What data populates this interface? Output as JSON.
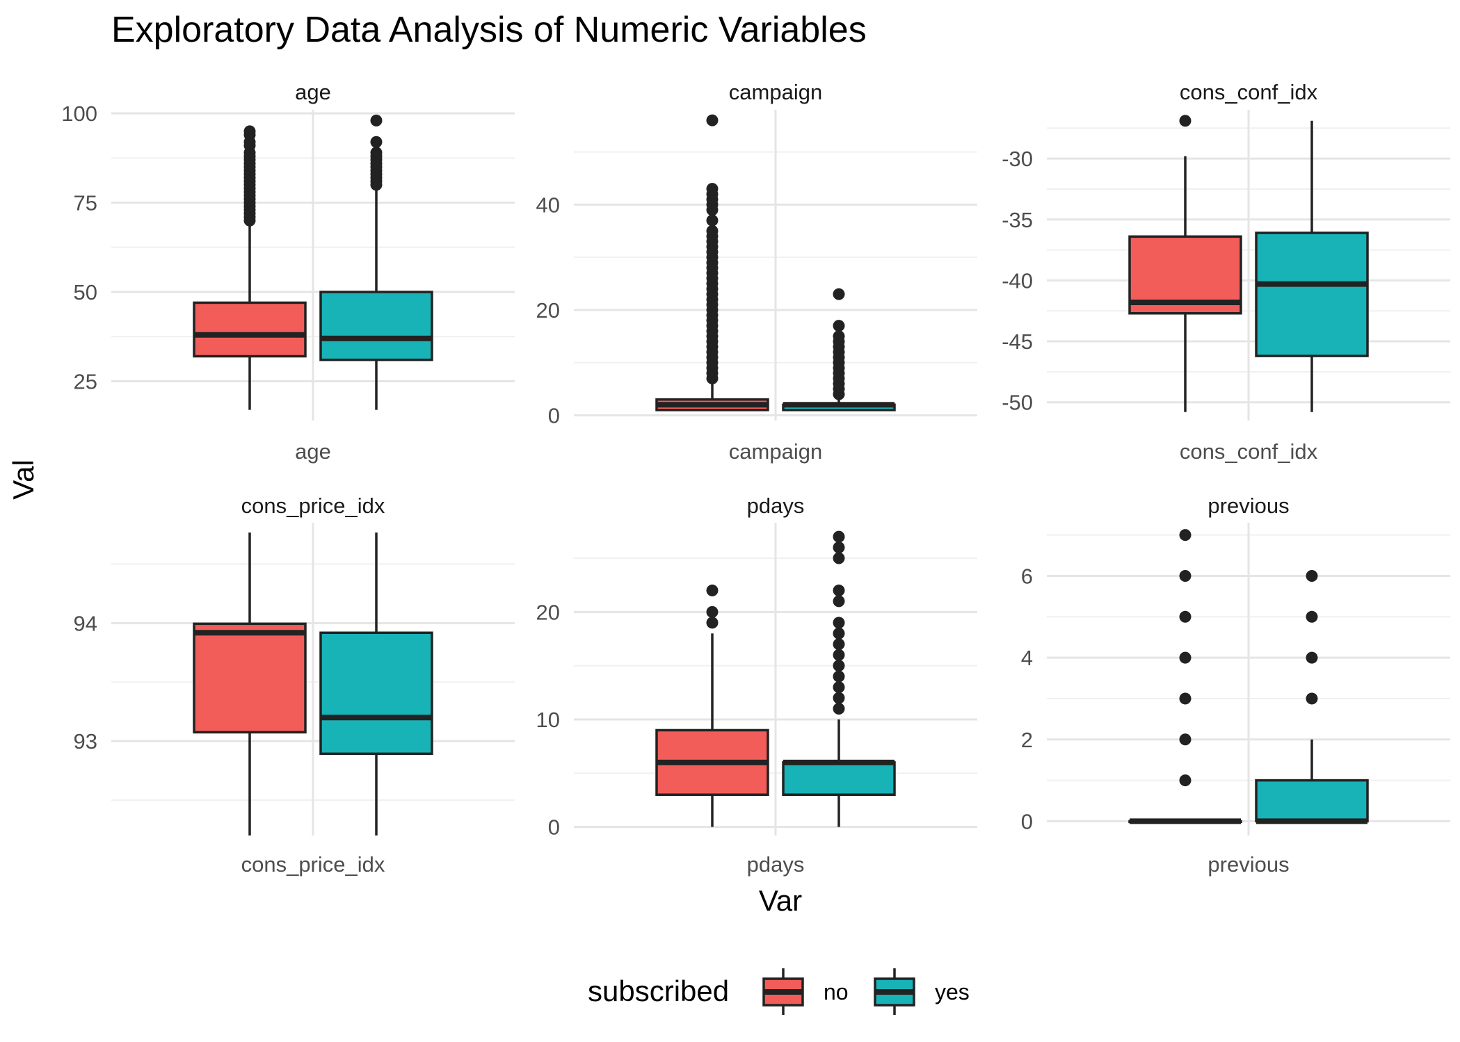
{
  "chart_data": {
    "type": "boxplot",
    "title": "Exploratory Data Analysis of Numeric Variables",
    "xlabel": "Var",
    "ylabel": "Val",
    "grid": true,
    "legend": {
      "title": "subscribed",
      "position": "bottom",
      "entries": [
        {
          "name": "no",
          "color": "#f25d5a"
        },
        {
          "name": "yes",
          "color": "#17b3b7"
        }
      ]
    },
    "panels": [
      {
        "name": "age",
        "xtick": "age",
        "ylim": [
          14,
          101
        ],
        "yticks": [
          25,
          50,
          75,
          100
        ],
        "yminor": [
          37.5,
          62.5,
          87.5
        ],
        "series": [
          {
            "name": "no",
            "whisker_low": 17,
            "q1": 32,
            "median": 38,
            "q3": 47,
            "whisker_high": 69,
            "outliers": [
              70,
              71,
              72,
              73,
              74,
              75,
              76,
              77,
              78,
              79,
              80,
              81,
              82,
              83,
              84,
              85,
              86,
              87,
              88,
              89,
              91,
              92,
              94,
              95
            ]
          },
          {
            "name": "yes",
            "whisker_low": 17,
            "q1": 31,
            "median": 37,
            "q3": 50,
            "whisker_high": 79,
            "outliers": [
              80,
              81,
              82,
              83,
              84,
              85,
              86,
              87,
              88,
              89,
              92,
              98
            ]
          }
        ]
      },
      {
        "name": "campaign",
        "xtick": "campaign",
        "ylim": [
          -1,
          58
        ],
        "yticks": [
          0,
          20,
          40
        ],
        "yminor": [
          10,
          30,
          50
        ],
        "series": [
          {
            "name": "no",
            "whisker_low": 1,
            "q1": 1,
            "median": 2,
            "q3": 3,
            "whisker_high": 6,
            "outliers": [
              7,
              8,
              9,
              10,
              11,
              12,
              13,
              14,
              15,
              16,
              17,
              18,
              19,
              20,
              21,
              22,
              23,
              24,
              25,
              26,
              27,
              28,
              29,
              30,
              31,
              32,
              33,
              34,
              35,
              37,
              39,
              40,
              41,
              42,
              43,
              56
            ]
          },
          {
            "name": "yes",
            "whisker_low": 1,
            "q1": 1,
            "median": 2,
            "q3": 2,
            "whisker_high": 3,
            "outliers": [
              4,
              5,
              6,
              7,
              8,
              9,
              10,
              11,
              12,
              13,
              14,
              15,
              17,
              23
            ]
          }
        ]
      },
      {
        "name": "cons_conf_idx",
        "xtick": "cons_conf_idx",
        "ylim": [
          -51.5,
          -26
        ],
        "yticks": [
          -50,
          -45,
          -40,
          -35,
          -30
        ],
        "yminor": [
          -47.5,
          -42.5,
          -37.5,
          -32.5,
          -27.5
        ],
        "series": [
          {
            "name": "no",
            "whisker_low": -50.8,
            "q1": -42.7,
            "median": -41.8,
            "q3": -36.4,
            "whisker_high": -29.8,
            "outliers": [
              -26.9
            ]
          },
          {
            "name": "yes",
            "whisker_low": -50.8,
            "q1": -46.2,
            "median": -40.3,
            "q3": -36.1,
            "whisker_high": -26.9,
            "outliers": []
          }
        ]
      },
      {
        "name": "cons_price_idx",
        "xtick": "cons_price_idx",
        "ylim": [
          92.2,
          94.85
        ],
        "yticks": [
          93,
          94
        ],
        "yminor": [
          92.5,
          93.5,
          94.5
        ],
        "series": [
          {
            "name": "no",
            "whisker_low": 92.201,
            "q1": 93.075,
            "median": 93.918,
            "q3": 93.994,
            "whisker_high": 94.767,
            "outliers": []
          },
          {
            "name": "yes",
            "whisker_low": 92.201,
            "q1": 92.893,
            "median": 93.2,
            "q3": 93.918,
            "whisker_high": 94.767,
            "outliers": []
          }
        ]
      },
      {
        "name": "pdays",
        "xtick": "pdays",
        "ylim": [
          -0.8,
          28.3
        ],
        "yticks": [
          0,
          10,
          20
        ],
        "yminor": [
          5,
          15,
          25
        ],
        "series": [
          {
            "name": "no",
            "whisker_low": 0,
            "q1": 3,
            "median": 6,
            "q3": 9,
            "whisker_high": 18,
            "outliers": [
              19,
              20,
              22
            ]
          },
          {
            "name": "yes",
            "whisker_low": 0,
            "q1": 3,
            "median": 6,
            "q3": 6,
            "whisker_high": 10,
            "outliers": [
              11,
              12,
              13,
              14,
              15,
              16,
              17,
              18,
              19,
              21,
              22,
              25,
              26,
              27
            ]
          }
        ]
      },
      {
        "name": "previous",
        "xtick": "previous",
        "ylim": [
          -0.35,
          7.3
        ],
        "yticks": [
          0,
          2,
          4,
          6
        ],
        "yminor": [
          1,
          3,
          5,
          7
        ],
        "series": [
          {
            "name": "no",
            "whisker_low": 0,
            "q1": 0,
            "median": 0,
            "q3": 0,
            "whisker_high": 0,
            "outliers": [
              1,
              2,
              3,
              4,
              5,
              6,
              7
            ]
          },
          {
            "name": "yes",
            "whisker_low": 0,
            "q1": 0,
            "median": 0,
            "q3": 1,
            "whisker_high": 2,
            "outliers": [
              3,
              4,
              5,
              6
            ]
          }
        ]
      }
    ]
  }
}
